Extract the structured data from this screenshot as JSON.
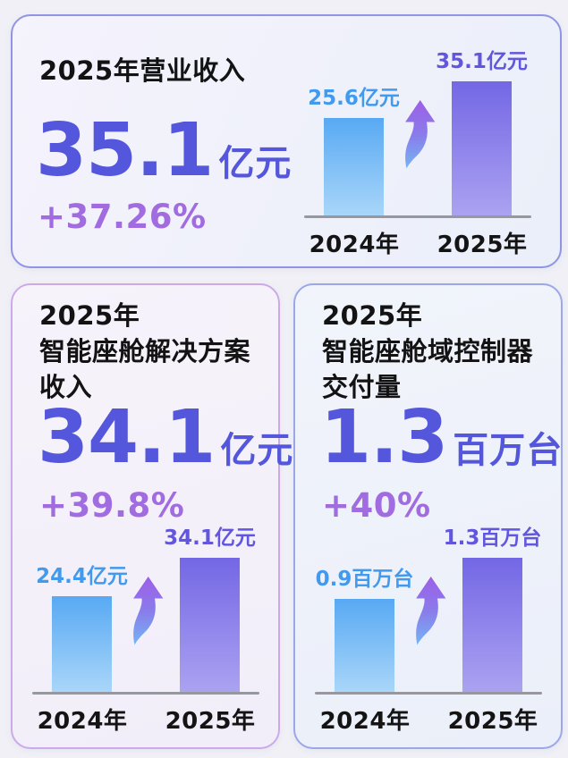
{
  "cards": [
    {
      "title": "2025年营业收入",
      "value": "35.1",
      "unit": "亿元",
      "growth": "+37.26%"
    },
    {
      "title_line1": "2025年",
      "title_line2": "智能座舱解决方案",
      "title_line3": "收入",
      "value": "34.1",
      "unit": "亿元",
      "growth": "+39.8%"
    },
    {
      "title_line1": "2025年",
      "title_line2": "智能座舱域控制器",
      "title_line3": "交付量",
      "value": "1.3",
      "unit": "百万台",
      "growth": "+40%"
    }
  ],
  "chart_data": [
    {
      "type": "bar",
      "title": "2025年营业收入",
      "categories": [
        "2024年",
        "2025年"
      ],
      "values": [
        25.6,
        35.1
      ],
      "unit": "亿元",
      "value_labels": [
        "25.6亿元",
        "35.1亿元"
      ],
      "growth": "+37.26%",
      "ylim": [
        0,
        36
      ],
      "grid": false,
      "legend": false
    },
    {
      "type": "bar",
      "title": "2025年智能座舱解决方案收入",
      "categories": [
        "2024年",
        "2025年"
      ],
      "values": [
        24.4,
        34.1
      ],
      "unit": "亿元",
      "value_labels": [
        "24.4亿元",
        "34.1亿元"
      ],
      "growth": "+39.8%",
      "ylim": [
        0,
        35
      ],
      "grid": false,
      "legend": false
    },
    {
      "type": "bar",
      "title": "2025年智能座舱域控制器交付量",
      "categories": [
        "2024年",
        "2025年"
      ],
      "values": [
        0.9,
        1.3
      ],
      "unit": "百万台",
      "value_labels": [
        "0.9百万台",
        "1.3百万台"
      ],
      "growth": "+40%",
      "ylim": [
        0,
        1.4
      ],
      "grid": false,
      "legend": false
    }
  ],
  "colors": {
    "page_background": "#F0F0F6",
    "title_text": "#131313",
    "headline_text": "#5457DB",
    "growth_text": "#A06CE0",
    "bar_2024_gradient_top": "#58A9F3",
    "bar_2024_gradient_bottom": "#A9D6F9",
    "bar_2025_gradient_top": "#7467E5",
    "bar_2025_gradient_bottom": "#ABA2F1",
    "label_2024": "#429AEF",
    "label_2025": "#6156DD",
    "arrow_gradient_top": "#9D5FE8",
    "arrow_gradient_bottom": "#74B5F4",
    "axis": "#97979F",
    "card_border_revenue": "#9193E4",
    "card_border_cockpit": "#CDA9E9",
    "card_border_controller": "#9AA7E9"
  }
}
